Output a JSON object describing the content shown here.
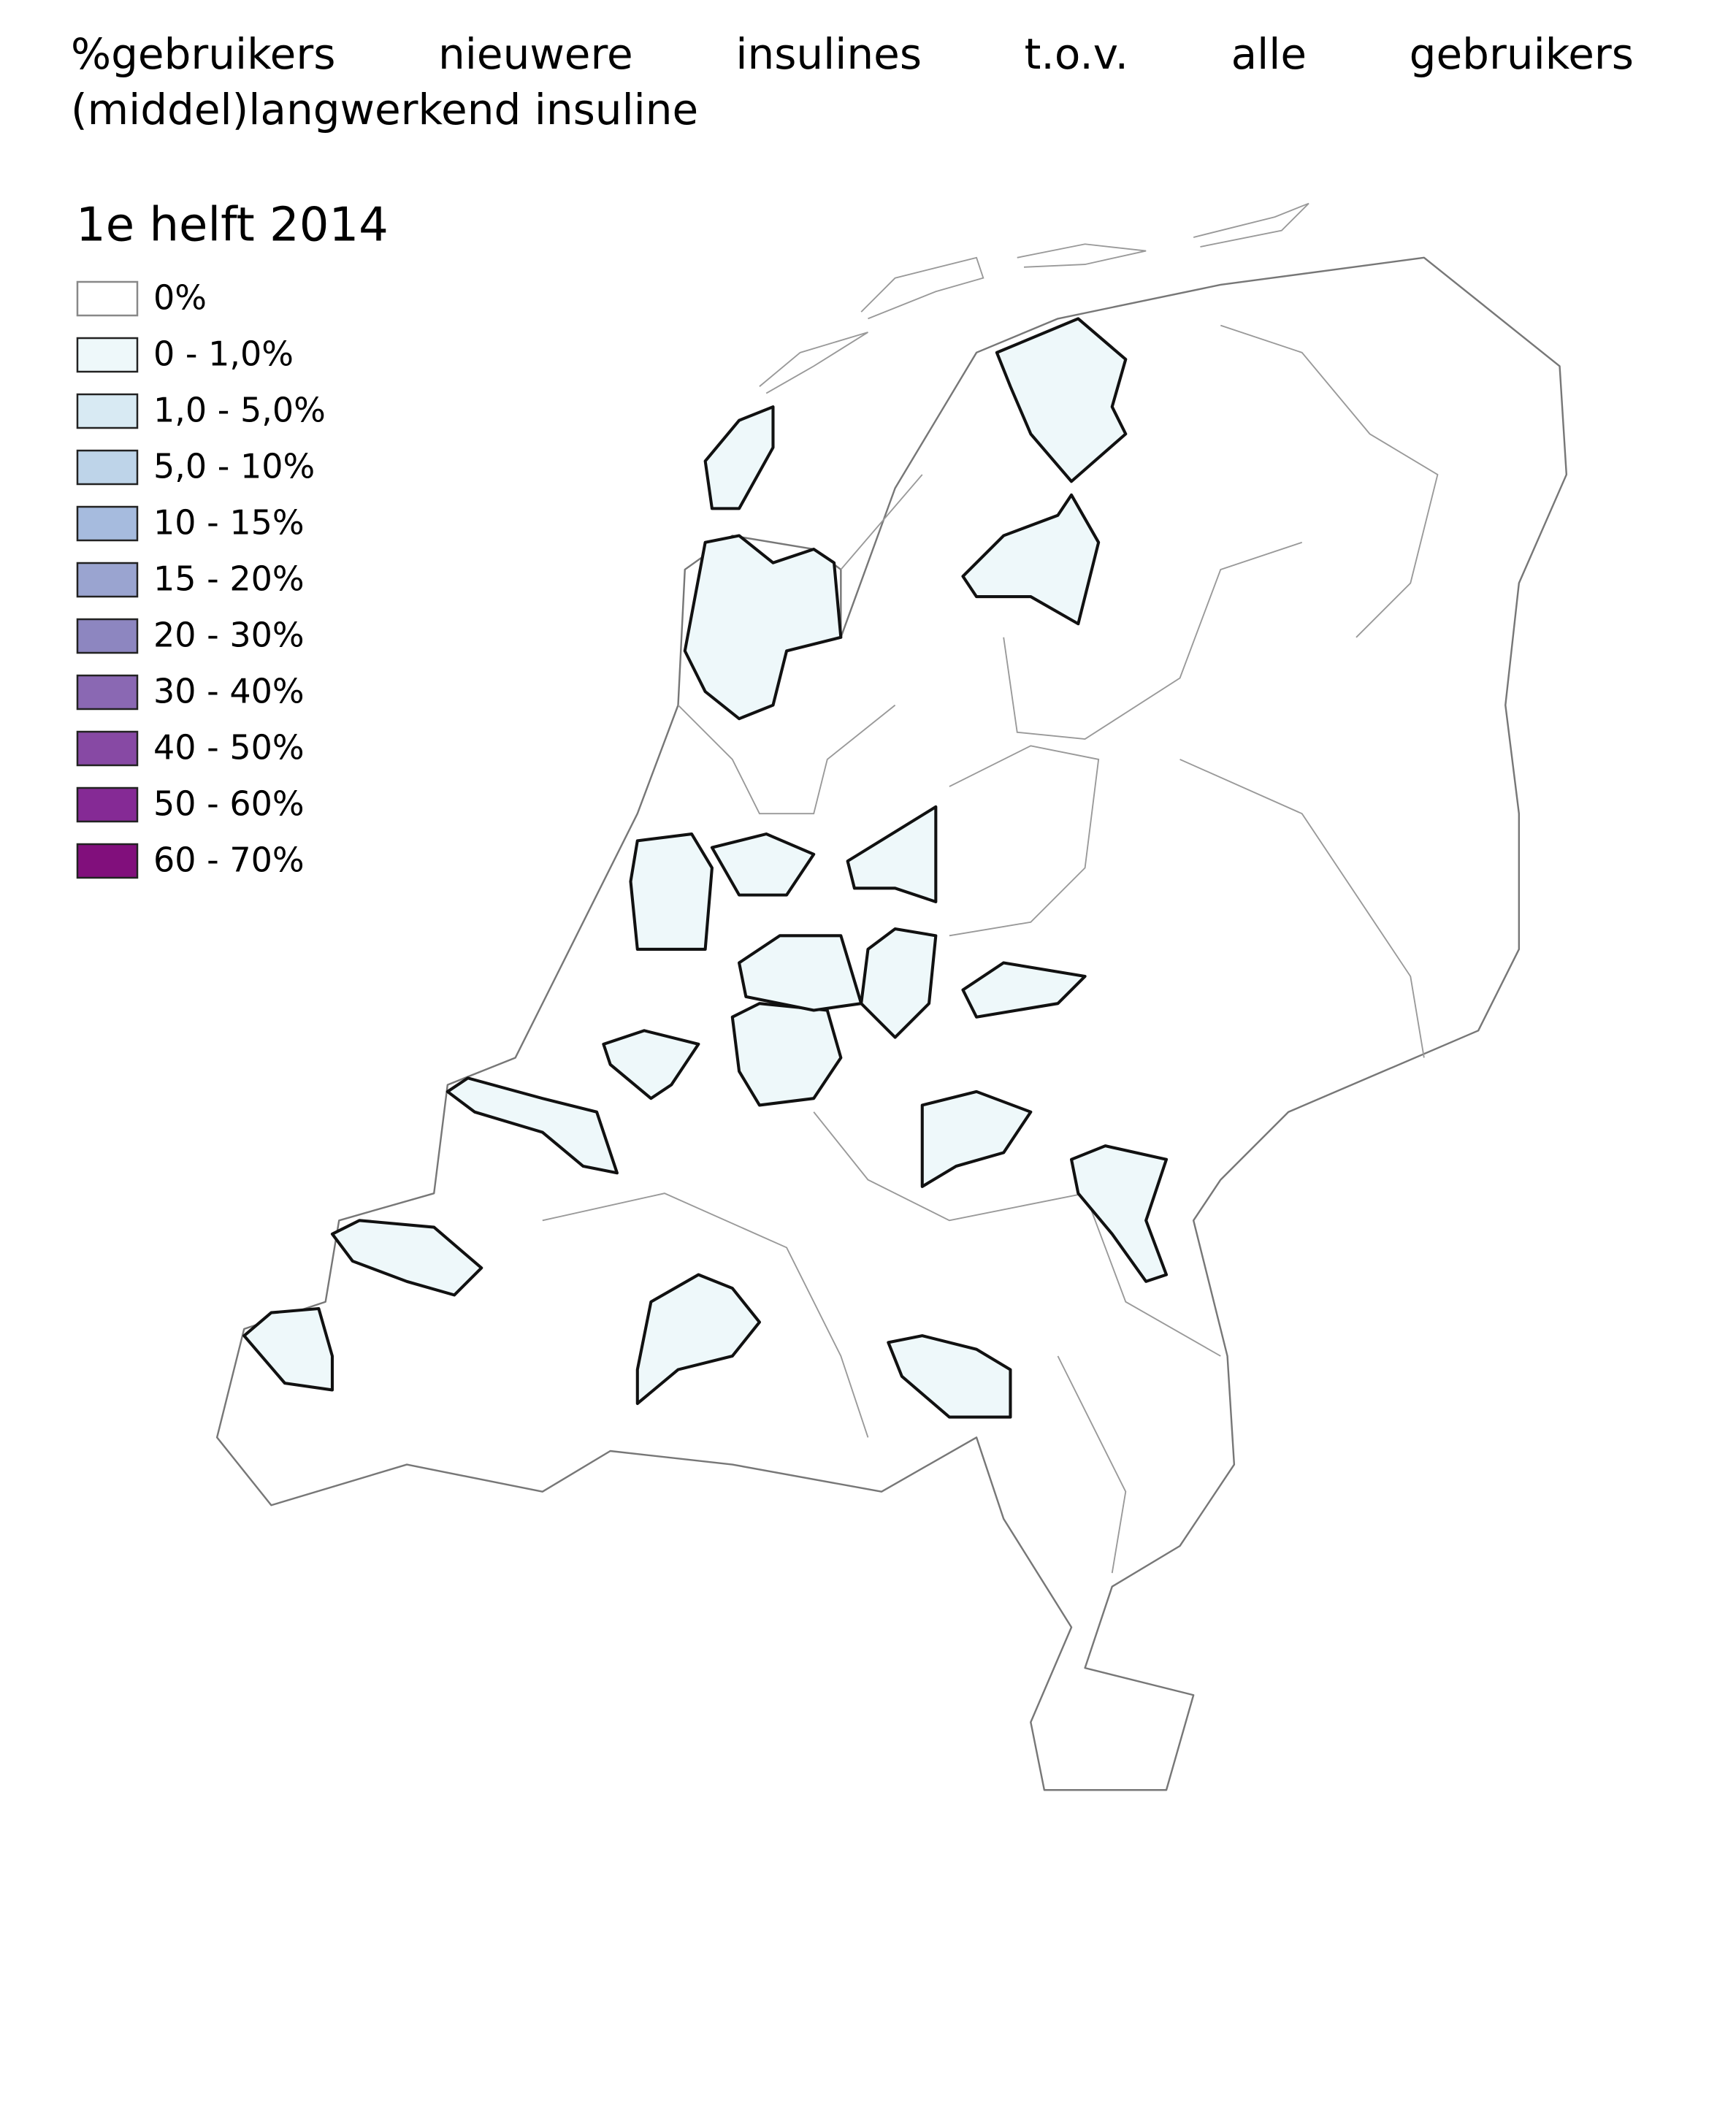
{
  "title": "%gebruikers nieuwere insulines t.o.v. alle gebruikers (middel)langwerkend insuline",
  "legend": {
    "title": "1e helft 2014",
    "items": [
      {
        "label": "0%",
        "color": "#ffffff"
      },
      {
        "label": "0 - 1,0%",
        "color": "#eef8fa"
      },
      {
        "label": "1,0 - 5,0%",
        "color": "#d8eaf3"
      },
      {
        "label": "5,0 - 10%",
        "color": "#bed4e9"
      },
      {
        "label": "10 - 15%",
        "color": "#a6bbde"
      },
      {
        "label": "15 - 20%",
        "color": "#9aa4d0"
      },
      {
        "label": "20 - 30%",
        "color": "#8d86c0"
      },
      {
        "label": "30 - 40%",
        "color": "#8a68b3"
      },
      {
        "label": "40 - 50%",
        "color": "#8749a4"
      },
      {
        "label": "50 - 60%",
        "color": "#852a95"
      },
      {
        "label": "60 - 70%",
        "color": "#810f7c"
      }
    ]
  }
}
